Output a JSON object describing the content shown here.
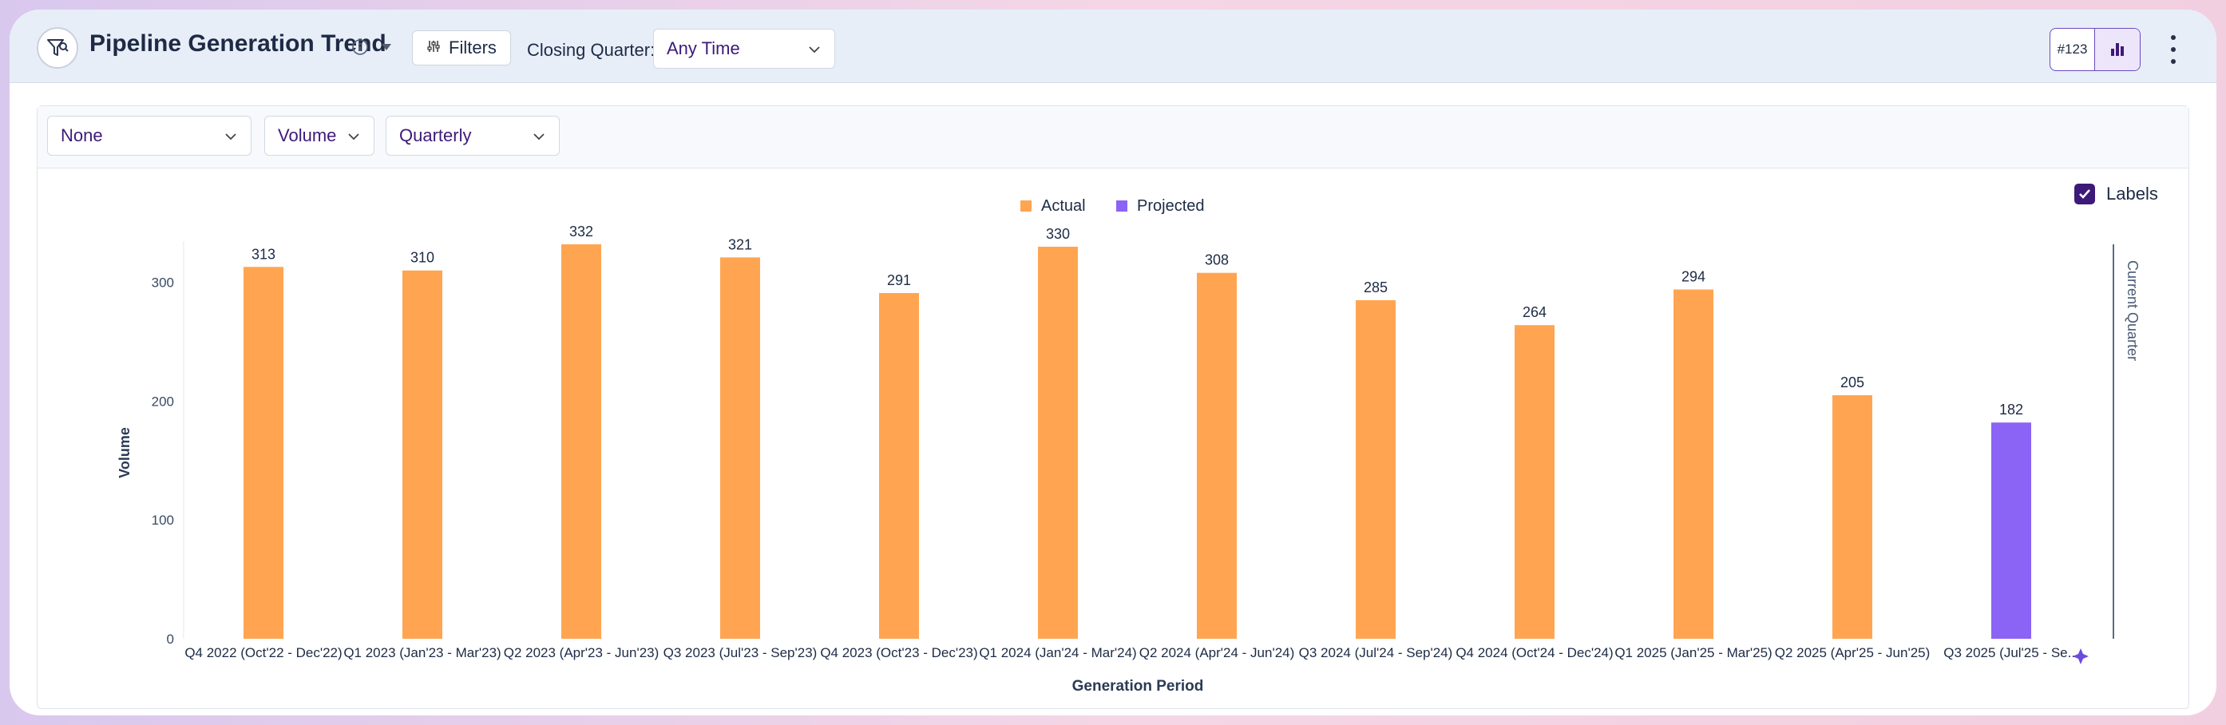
{
  "header": {
    "title": "Pipeline Generation Trend",
    "filters_label": "Filters",
    "closing_quarter_label": "Closing Quarter:",
    "closing_quarter_value": "Any Time",
    "id_badge": "#123"
  },
  "toolbar": {
    "group_by": "None",
    "metric": "Volume",
    "period": "Quarterly"
  },
  "labels_toggle": {
    "label": "Labels",
    "checked": true
  },
  "colors": {
    "actual": "#ffa552",
    "projected": "#8b63f5",
    "accent": "#3d1a78"
  },
  "chart_data": {
    "type": "bar",
    "categories": [
      "Q4 2022 (Oct'22 - Dec'22)",
      "Q1 2023 (Jan'23 - Mar'23)",
      "Q2 2023 (Apr'23 - Jun'23)",
      "Q3 2023 (Jul'23 - Sep'23)",
      "Q4 2023 (Oct'23 - Dec'23)",
      "Q1 2024 (Jan'24 - Mar'24)",
      "Q2 2024 (Apr'24 - Jun'24)",
      "Q3 2024 (Jul'24 - Sep'24)",
      "Q4 2024 (Oct'24 - Dec'24)",
      "Q1 2025 (Jan'25 - Mar'25)",
      "Q2 2025 (Apr'25 - Jun'25)",
      "Q3 2025 (Jul'25 - Se..."
    ],
    "values": [
      313,
      310,
      332,
      321,
      291,
      330,
      308,
      285,
      264,
      294,
      205,
      182
    ],
    "series_type": [
      "Actual",
      "Actual",
      "Actual",
      "Actual",
      "Actual",
      "Actual",
      "Actual",
      "Actual",
      "Actual",
      "Actual",
      "Actual",
      "Projected"
    ],
    "legend": [
      "Actual",
      "Projected"
    ],
    "legend_position": "top-center",
    "xlabel": "Generation Period",
    "ylabel": "Volume",
    "yticks": [
      0,
      100,
      200,
      300
    ],
    "ylim": [
      0,
      332
    ],
    "annotation": "Current Quarter",
    "grid": false,
    "data_labels": true
  }
}
